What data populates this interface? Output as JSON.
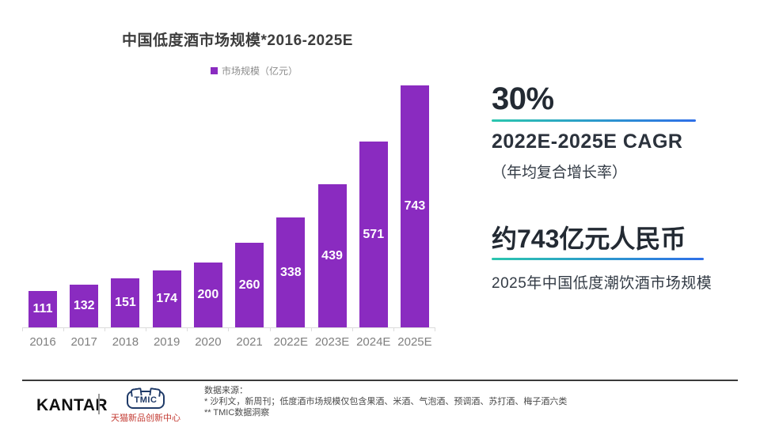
{
  "chart_data": {
    "type": "bar",
    "title": "中国低度酒市场规模*2016-2025E",
    "series_name": "市场规模（亿元）",
    "categories": [
      "2016",
      "2017",
      "2018",
      "2019",
      "2020",
      "2021",
      "2022E",
      "2023E",
      "2024E",
      "2025E"
    ],
    "values": [
      111,
      132,
      151,
      174,
      200,
      260,
      338,
      439,
      571,
      743
    ],
    "unit": "亿元",
    "bar_color": "#8A2BC0",
    "value_label_color": "#ffffff",
    "xlabel": "",
    "ylabel": "",
    "ylim": [
      0,
      760
    ],
    "grid": false,
    "legend_position": "top"
  },
  "stats": {
    "cagr": {
      "headline": "30%",
      "line1": "2022E-2025E CAGR",
      "line2": "（年均复合增长率）"
    },
    "market": {
      "headline": "约743亿元人民币",
      "line1": "2025年中国低度潮饮酒市场规模"
    }
  },
  "footer": {
    "kantar_wordmark": "KANTAR",
    "tmic_wordmark": "TMIC",
    "tmic_caption": "天猫新品创新中心",
    "source_title": "数据来源：",
    "source_note1": "* 沙利文，新周刊；低度酒市场规模仅包含果酒、米酒、气泡酒、预调酒、苏打酒、梅子酒六类",
    "source_note2": "** TMIC数据洞察"
  },
  "colors": {
    "bar": "#8A2BC0",
    "underline_gradient_start": "#2BC6AE",
    "underline_gradient_end": "#2E6FE8",
    "divider": "#3b3b3b"
  }
}
